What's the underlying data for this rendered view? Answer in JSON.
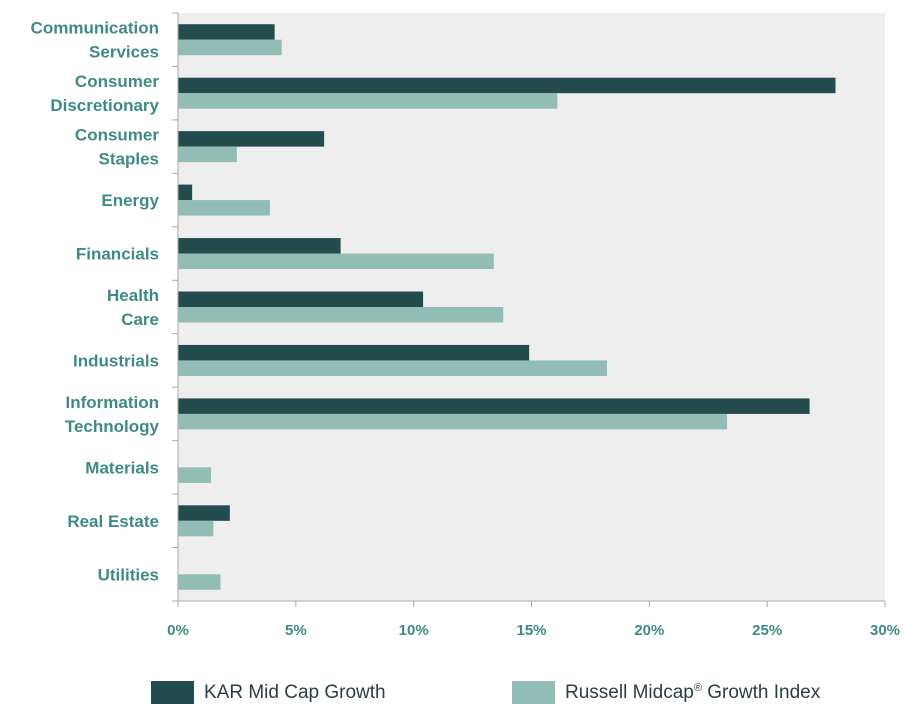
{
  "chart_data": {
    "type": "bar",
    "orientation": "horizontal",
    "categories": [
      [
        "Communication",
        "Services"
      ],
      [
        "Consumer",
        "Discretionary"
      ],
      [
        "Consumer",
        "Staples"
      ],
      [
        "Energy"
      ],
      [
        "Financials"
      ],
      [
        "Health",
        "Care"
      ],
      [
        "Industrials"
      ],
      [
        "Information",
        "Technology"
      ],
      [
        "Materials"
      ],
      [
        "Real Estate"
      ],
      [
        "Utilities"
      ]
    ],
    "series": [
      {
        "name": "KAR Mid Cap Growth",
        "color": "#244b4d",
        "values": [
          4.1,
          27.9,
          6.2,
          0.6,
          6.9,
          10.4,
          14.9,
          26.8,
          0.0,
          2.2,
          0.0
        ]
      },
      {
        "name": "Russell Midcap® Growth Index",
        "color": "#92bdb4",
        "values": [
          4.4,
          16.1,
          2.5,
          3.9,
          13.4,
          13.8,
          18.2,
          23.3,
          1.4,
          1.5,
          1.8
        ]
      }
    ],
    "xlim": [
      0,
      30
    ],
    "xticks": [
      "0%",
      "5%",
      "10%",
      "15%",
      "20%",
      "25%",
      "30%"
    ],
    "xtick_values": [
      0,
      5,
      10,
      15,
      20,
      25,
      30
    ],
    "grid": false,
    "legend_position": "bottom",
    "colors": {
      "plot_background": "#eeeeee",
      "label_text": "#3f8a85",
      "axis": "#aaaaaa"
    }
  },
  "legend": {
    "kar_label": "KAR Mid Cap Growth",
    "russell_label_main": "Russell Midcap",
    "russell_label_sup": "®",
    "russell_label_end": " Growth Index"
  }
}
